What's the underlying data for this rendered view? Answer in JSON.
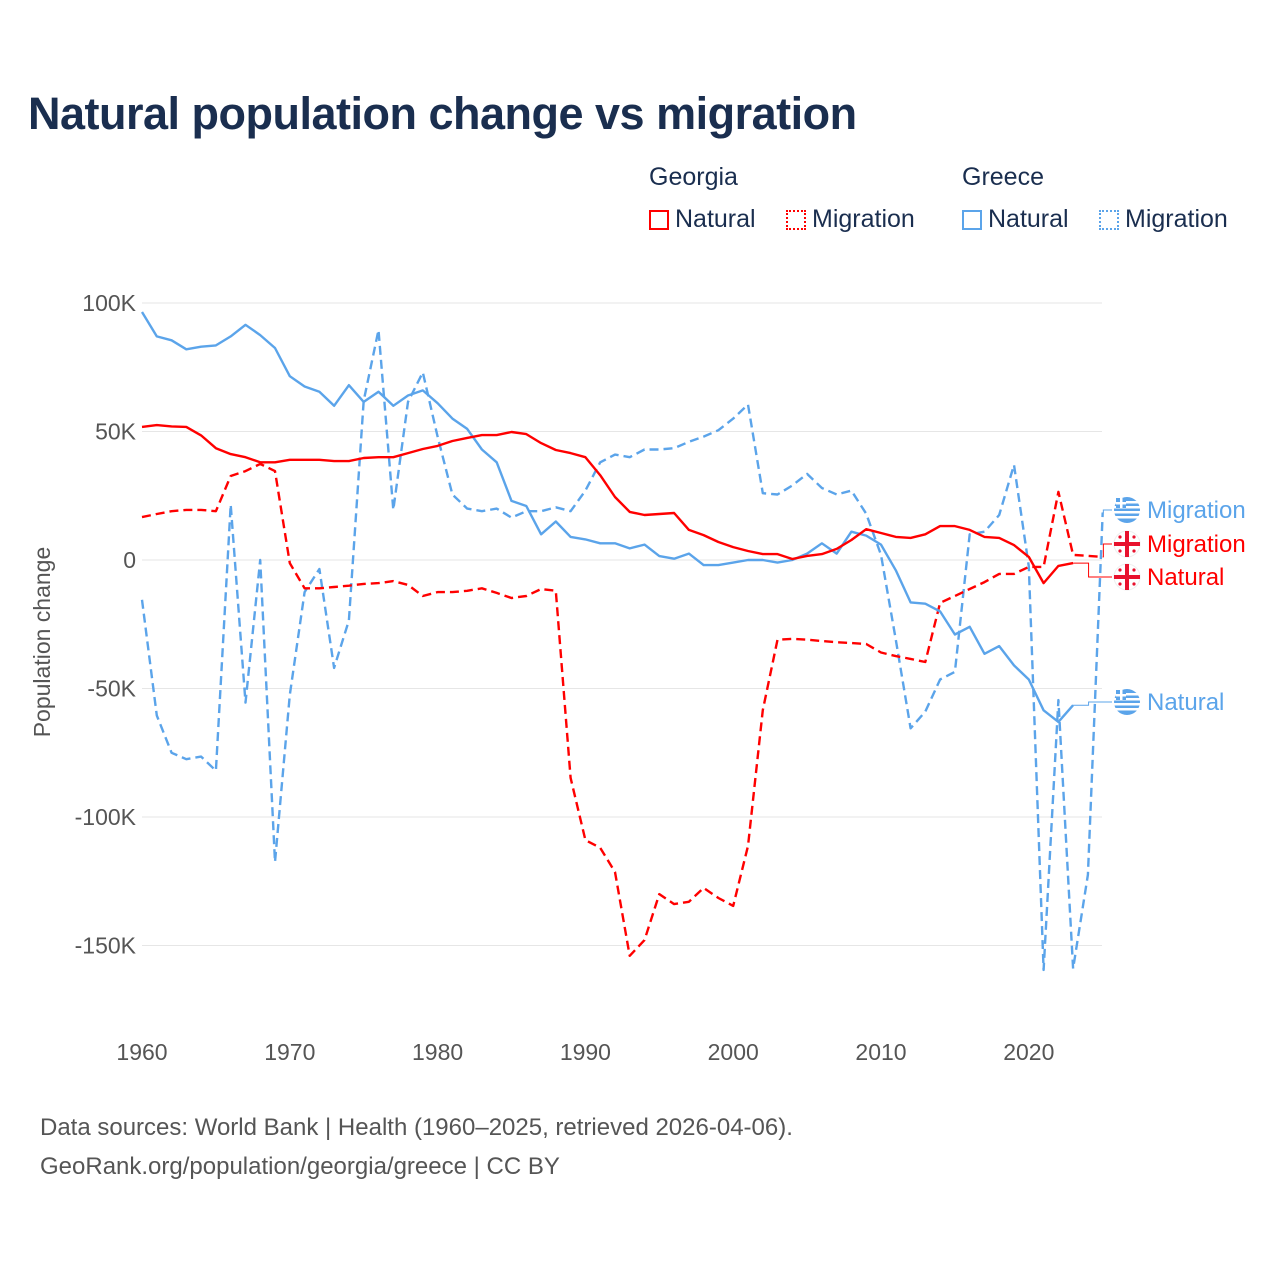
{
  "chart_data": {
    "type": "line",
    "title": "Natural population change vs migration",
    "xlabel": "",
    "ylabel": "Population change",
    "xlim": [
      1960,
      2025
    ],
    "ylim": [
      -160000,
      100000
    ],
    "x_ticks": [
      "1960",
      "1970",
      "1980",
      "1990",
      "2000",
      "2010",
      "2020"
    ],
    "y_ticks": [
      {
        "v": 100000,
        "label": "100K"
      },
      {
        "v": 50000,
        "label": "50K"
      },
      {
        "v": 0,
        "label": "0"
      },
      {
        "v": -50000,
        "label": "-50K"
      },
      {
        "v": -100000,
        "label": "-100K"
      },
      {
        "v": -150000,
        "label": "-150K"
      }
    ],
    "grid": true,
    "legend": {
      "placement": "top-right",
      "groups": [
        {
          "name": "Georgia",
          "items": [
            "Natural",
            "Migration"
          ]
        },
        {
          "name": "Greece",
          "items": [
            "Natural",
            "Migration"
          ]
        }
      ]
    },
    "start_year": 1960,
    "series": [
      {
        "name": "Greece Natural",
        "country": "Greece",
        "kind": "Natural",
        "color": "#5ba4ea",
        "dash": false,
        "end_label": "Natural",
        "values": [
          96.5,
          87,
          85.5,
          82,
          83,
          83.5,
          87,
          91.5,
          87.5,
          82.5,
          71.5,
          67.5,
          65.5,
          60,
          68,
          61.5,
          65.5,
          60,
          64,
          66,
          61,
          55,
          51,
          43,
          38,
          23,
          21,
          10,
          15,
          9,
          8,
          6.5,
          6.5,
          4.5,
          6,
          1.5,
          0.5,
          2.5,
          -2,
          -2,
          -1,
          0,
          0,
          -1,
          0,
          2.5,
          6.5,
          2.5,
          11,
          9.5,
          6,
          -4,
          -16.5,
          -17,
          -20,
          -29,
          -26,
          -36.5,
          -33.5,
          -41,
          -46.5,
          -58.5,
          -63,
          -56.5
        ]
      },
      {
        "name": "Greece Migration",
        "country": "Greece",
        "kind": "Migration",
        "color": "#5ba4ea",
        "dash": true,
        "end_label": "Migration",
        "values": [
          -15.5,
          -60.5,
          -75,
          -77.5,
          -76.5,
          -82,
          21.5,
          -55.5,
          0,
          -117.5,
          -52.5,
          -12.5,
          -3.5,
          -42,
          -23.5,
          62,
          89.5,
          19.5,
          61.5,
          73,
          48,
          25.5,
          20,
          19,
          20,
          16.5,
          19,
          19,
          20.5,
          19,
          27,
          38,
          41,
          40,
          43,
          43,
          43.5,
          46,
          48,
          50.5,
          55,
          60.5,
          26,
          25.5,
          29,
          33.5,
          28,
          25.5,
          27,
          18,
          2,
          -31,
          -65.5,
          -59,
          -46.5,
          -43.5,
          10,
          11,
          17.5,
          37,
          -2.5,
          -159.5,
          -54.5,
          -159,
          -122.5,
          18.5
        ]
      },
      {
        "name": "Georgia Natural",
        "country": "Georgia",
        "kind": "Natural",
        "color": "#ff0000",
        "dash": false,
        "end_label": "Natural",
        "values": [
          51.8,
          52.5,
          52,
          51.8,
          48.5,
          43.5,
          41.2,
          40,
          38,
          38,
          39,
          39,
          39,
          38.5,
          38.5,
          39.7,
          40,
          40,
          41.6,
          43.2,
          44.4,
          46.3,
          47.5,
          48.6,
          48.6,
          49.8,
          49,
          45.5,
          42.8,
          41.6,
          40,
          33,
          24.5,
          18.7,
          17.5,
          17.9,
          18.3,
          11.7,
          9.7,
          7,
          5,
          3.5,
          2.3,
          2.3,
          0.4,
          1.6,
          2.3,
          4.3,
          7.8,
          12,
          10.5,
          9,
          8.6,
          10,
          13.2,
          13.2,
          11.7,
          9,
          8.6,
          5.8,
          1.2,
          -9,
          -2.3,
          -1.2
        ]
      },
      {
        "name": "Georgia Migration",
        "country": "Georgia",
        "kind": "Migration",
        "color": "#ff0000",
        "dash": true,
        "end_label": "Migration",
        "values": [
          16.7,
          17.9,
          19,
          19.5,
          19.5,
          19,
          32.7,
          34.6,
          37.4,
          34.6,
          -1.2,
          -11,
          -11,
          -10.5,
          -10,
          -9.3,
          -9,
          -8.2,
          -9.7,
          -14,
          -12.5,
          -12.5,
          -12,
          -11,
          -12.8,
          -14.8,
          -14,
          -11.3,
          -12,
          -84.8,
          -109,
          -112,
          -121.4,
          -154,
          -147.9,
          -130,
          -133.9,
          -133,
          -127.6,
          -131.5,
          -134.6,
          -111.3,
          -58.4,
          -31,
          -30.7,
          -31,
          -31.5,
          -32,
          -32.3,
          -32.7,
          -36,
          -37.4,
          -38.5,
          -39.7,
          -16.7,
          -14,
          -11.3,
          -8.6,
          -5.4,
          -5.4,
          -2.7,
          -2.7,
          26.5,
          2,
          1.6,
          1.2
        ]
      }
    ],
    "value_unit": "thousands"
  },
  "title": "Natural population change vs migration",
  "legend": {
    "georgia": "Georgia",
    "greece": "Greece",
    "natural": "Natural",
    "migration": "Migration"
  },
  "footer": {
    "line1": "Data sources: World Bank | Health (1960–2025, retrieved 2026-04-06).",
    "line2": "GeoRank.org/population/georgia/greece | CC BY"
  },
  "colors": {
    "georgia": "#ff0000",
    "greece": "#5ba4ea",
    "title": "#1a2e4f"
  }
}
